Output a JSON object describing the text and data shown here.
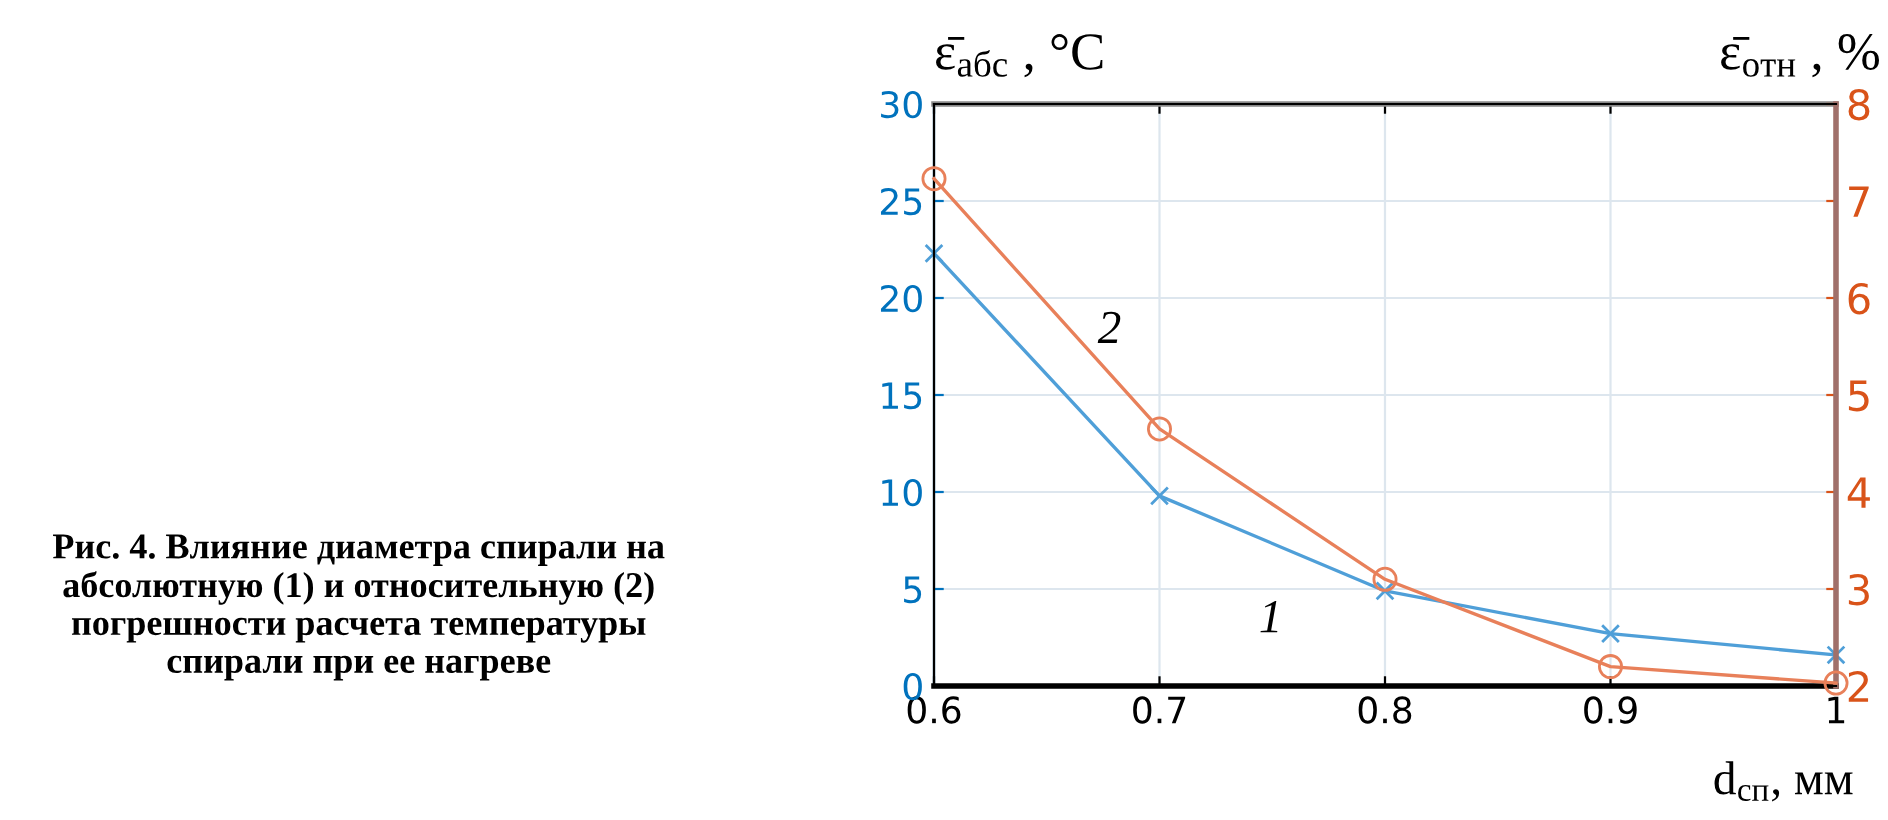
{
  "chart_data": {
    "type": "line",
    "xlabel": "d$_{сп}$, мм",
    "ylabel": "ε̄$_{абс}$ , °C",
    "y2label": "ε̄$_{отн}$ , %",
    "x": [
      0.6,
      0.7,
      0.8,
      0.9,
      1.0
    ],
    "series": [
      {
        "name": "1",
        "color": "#4f9fd8",
        "marker": "cross",
        "values": [
          22.3,
          9.8,
          4.9,
          2.7,
          1.6
        ]
      },
      {
        "name": "2",
        "color": "#e8805a",
        "marker": "circle",
        "axis": "y2",
        "values": [
          7.23,
          4.65,
          3.1,
          2.2,
          2.03
        ]
      }
    ],
    "xlim": [
      0.6,
      1.0
    ],
    "xticks": [
      0.6,
      0.7,
      0.8,
      0.9,
      1
    ],
    "ylim": [
      0,
      30
    ],
    "yticks": [
      0,
      5,
      10,
      15,
      20,
      25,
      30
    ],
    "y2lim": [
      2,
      8
    ],
    "y2ticks": [
      2,
      3,
      4,
      5,
      6,
      7,
      8
    ],
    "grid": true,
    "legend": false,
    "annotations": [
      "Рис. 4. Влияние диаметра спирали на абсолютную (1) и относительную (2) погрешности расчета температуры спирали при ее нагреве"
    ]
  }
}
